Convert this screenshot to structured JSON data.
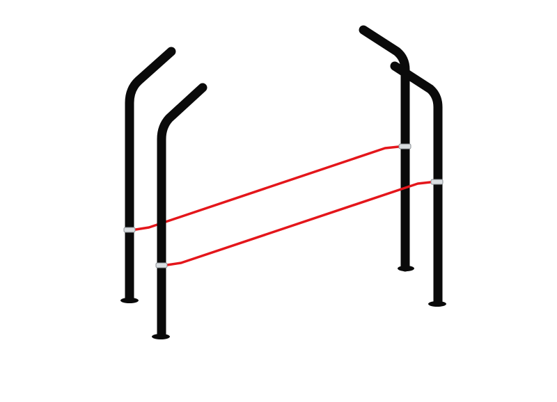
{
  "colors": {
    "background": "#ffffff",
    "post": "#0a0a0a",
    "rail": "#e4161b",
    "clamp": "#d9dde0",
    "clamp_edge": "#8a8f93"
  },
  "subject": {
    "posts": 4,
    "rails": 2,
    "clamps": 4,
    "base_plates": 4
  }
}
